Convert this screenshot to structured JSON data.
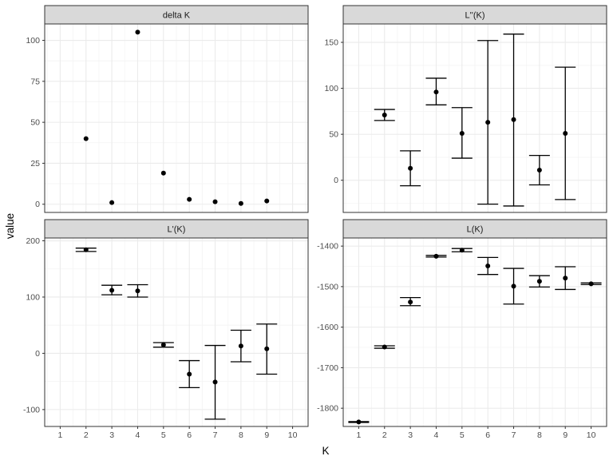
{
  "chart_data": {
    "type": "scatter",
    "layout": "facet_wrap_2x2",
    "xlabel": "K",
    "ylabel": "value",
    "x_ticks": [
      1,
      2,
      3,
      4,
      5,
      6,
      7,
      8,
      9,
      10
    ],
    "x_limits": [
      0.4,
      10.6
    ],
    "colors": {
      "strip": "#d9d9d9",
      "grid_major": "#ebebeb",
      "grid_minor": "#f4f4f4",
      "border": "#333333",
      "point": "#000000"
    },
    "panels": [
      {
        "id": "delta-k",
        "title": "delta K",
        "position": "top-left",
        "y_limits": [
          -5,
          110
        ],
        "y_ticks": [
          0,
          25,
          50,
          75,
          100
        ],
        "y_tick_labels": [
          "0",
          "25",
          "50",
          "75",
          "100"
        ],
        "has_error_bars": false,
        "x_tick_labels_shown": false,
        "points": [
          {
            "k": 2,
            "value": 40
          },
          {
            "k": 3,
            "value": 1
          },
          {
            "k": 4,
            "value": 105
          },
          {
            "k": 5,
            "value": 19
          },
          {
            "k": 6,
            "value": 3
          },
          {
            "k": 7,
            "value": 1.5
          },
          {
            "k": 8,
            "value": 0.5
          },
          {
            "k": 9,
            "value": 2
          }
        ]
      },
      {
        "id": "l-double-prime-k",
        "title": "L''(K)",
        "position": "top-right",
        "y_limits": [
          -35,
          170
        ],
        "y_ticks": [
          0,
          50,
          100,
          150
        ],
        "y_tick_labels": [
          "0",
          "50",
          "100",
          "150"
        ],
        "has_error_bars": true,
        "x_tick_labels_shown": false,
        "points": [
          {
            "k": 2,
            "value": 71,
            "lo": 65,
            "hi": 77
          },
          {
            "k": 3,
            "value": 13,
            "lo": -6,
            "hi": 32
          },
          {
            "k": 4,
            "value": 96,
            "lo": 82,
            "hi": 111
          },
          {
            "k": 5,
            "value": 51,
            "lo": 24,
            "hi": 79
          },
          {
            "k": 6,
            "value": 63,
            "lo": -26,
            "hi": 152
          },
          {
            "k": 7,
            "value": 66,
            "lo": -28,
            "hi": 159
          },
          {
            "k": 8,
            "value": 11,
            "lo": -5,
            "hi": 27
          },
          {
            "k": 9,
            "value": 51,
            "lo": -21,
            "hi": 123
          }
        ]
      },
      {
        "id": "l-prime-k",
        "title": "L'(K)",
        "position": "bottom-left",
        "y_limits": [
          -130,
          205
        ],
        "y_ticks": [
          -100,
          0,
          100,
          200
        ],
        "y_tick_labels": [
          "-100",
          "0",
          "100",
          "200"
        ],
        "has_error_bars": true,
        "x_tick_labels_shown": true,
        "points": [
          {
            "k": 2,
            "value": 184,
            "lo": 181,
            "hi": 187
          },
          {
            "k": 3,
            "value": 112,
            "lo": 104,
            "hi": 121
          },
          {
            "k": 4,
            "value": 111,
            "lo": 100,
            "hi": 122
          },
          {
            "k": 5,
            "value": 15,
            "lo": 11,
            "hi": 19
          },
          {
            "k": 6,
            "value": -37,
            "lo": -61,
            "hi": -13
          },
          {
            "k": 7,
            "value": -51,
            "lo": -117,
            "hi": 14
          },
          {
            "k": 8,
            "value": 13,
            "lo": -15,
            "hi": 41
          },
          {
            "k": 9,
            "value": 8,
            "lo": -37,
            "hi": 52
          }
        ]
      },
      {
        "id": "l-k",
        "title": "L(K)",
        "position": "bottom-right",
        "y_limits": [
          -1845,
          -1380
        ],
        "y_ticks": [
          -1800,
          -1700,
          -1600,
          -1500,
          -1400
        ],
        "y_tick_labels": [
          "-1800",
          "-1700",
          "-1600",
          "-1500",
          "-1400"
        ],
        "has_error_bars": true,
        "x_tick_labels_shown": true,
        "points": [
          {
            "k": 1,
            "value": -1834,
            "lo": -1835,
            "hi": -1833
          },
          {
            "k": 2,
            "value": -1649,
            "lo": -1652,
            "hi": -1646
          },
          {
            "k": 3,
            "value": -1538,
            "lo": -1547,
            "hi": -1527
          },
          {
            "k": 4,
            "value": -1425,
            "lo": -1427,
            "hi": -1423
          },
          {
            "k": 5,
            "value": -1410,
            "lo": -1414,
            "hi": -1406
          },
          {
            "k": 6,
            "value": -1449,
            "lo": -1470,
            "hi": -1428
          },
          {
            "k": 7,
            "value": -1499,
            "lo": -1543,
            "hi": -1455
          },
          {
            "k": 8,
            "value": -1487,
            "lo": -1501,
            "hi": -1473
          },
          {
            "k": 9,
            "value": -1479,
            "lo": -1507,
            "hi": -1451
          },
          {
            "k": 10,
            "value": -1493,
            "lo": -1495,
            "hi": -1491
          }
        ]
      }
    ]
  }
}
